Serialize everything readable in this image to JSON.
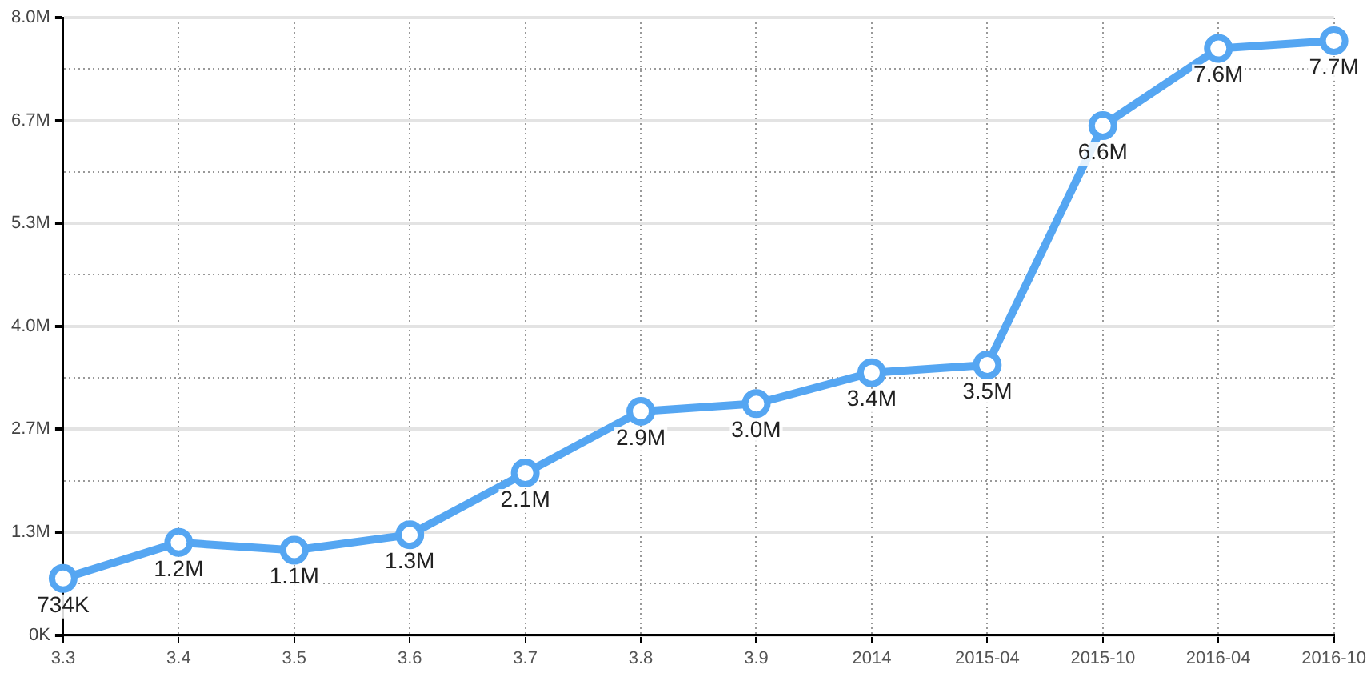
{
  "chart_data": {
    "type": "line",
    "categories": [
      "3.3",
      "3.4",
      "3.5",
      "3.6",
      "3.7",
      "3.8",
      "3.9",
      "2014",
      "2015-04",
      "2015-10",
      "2016-04",
      "2016-10"
    ],
    "series": [
      {
        "color": "#55a6f2",
        "values": [
          734000,
          1200000,
          1100000,
          1300000,
          2100000,
          2900000,
          3000000,
          3400000,
          3500000,
          6600000,
          7600000,
          7700000
        ],
        "value_labels": [
          "734K",
          "1.2M",
          "1.1M",
          "1.3M",
          "2.1M",
          "2.9M",
          "3.0M",
          "3.4M",
          "3.5M",
          "6.6M",
          "7.6M",
          "7.7M"
        ]
      }
    ],
    "ylim": [
      0,
      8000000
    ],
    "yticks": [
      {
        "value": 0,
        "label": "0K"
      },
      {
        "value": 666667,
        "label": null
      },
      {
        "value": 1333333,
        "label": "1.3M"
      },
      {
        "value": 2000000,
        "label": null
      },
      {
        "value": 2666667,
        "label": "2.7M"
      },
      {
        "value": 3333333,
        "label": null
      },
      {
        "value": 4000000,
        "label": "4.0M"
      },
      {
        "value": 4666667,
        "label": null
      },
      {
        "value": 5333333,
        "label": "5.3M"
      },
      {
        "value": 6000000,
        "label": null
      },
      {
        "value": 6666667,
        "label": "6.7M"
      },
      {
        "value": 7333333,
        "label": null
      },
      {
        "value": 8000000,
        "label": "8.0M"
      }
    ],
    "grid": true,
    "legend": false,
    "marker": "circle",
    "line_style": "solid"
  }
}
